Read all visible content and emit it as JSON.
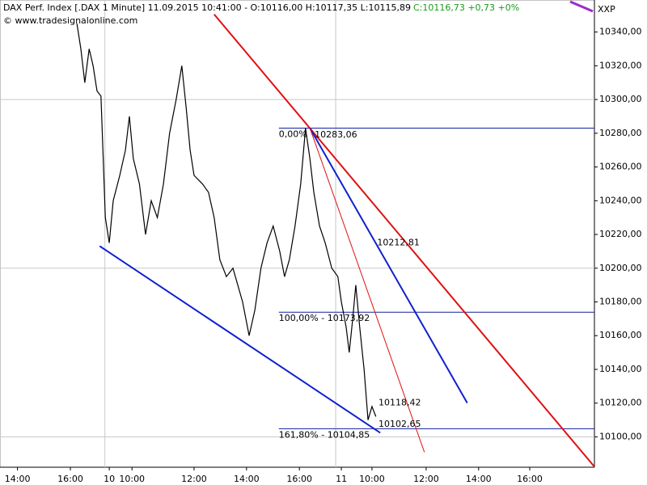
{
  "chart_data": {
    "type": "line",
    "title": "DAX Perf. Index [.DAX  1 Minute] 11.09.2015 10:41:00 - O:10116,00 H:10117,35 L:10115,89",
    "title_close": "C:10116,73 +0,73 +0%",
    "title_close_color": "#1a9a1a",
    "copyright": "© www.tradesignalonline.com",
    "corner_label": "XXP",
    "corner_color": "#9a2bd0",
    "xlim": [
      0,
      1360
    ],
    "ylim": [
      10082,
      10359
    ],
    "xticks": [
      {
        "value": 40,
        "label": "14:00"
      },
      {
        "value": 161,
        "label": "16:00"
      },
      {
        "value": 250,
        "label": "10"
      },
      {
        "value": 302,
        "label": "10:00"
      },
      {
        "value": 444,
        "label": "12:00"
      },
      {
        "value": 564,
        "label": "14:00"
      },
      {
        "value": 685,
        "label": "16:00"
      },
      {
        "value": 781,
        "label": "11"
      },
      {
        "value": 851,
        "label": "10:00"
      },
      {
        "value": 975,
        "label": "12:00"
      },
      {
        "value": 1095,
        "label": "14:00"
      },
      {
        "value": 1212,
        "label": "16:00"
      }
    ],
    "yticks": [
      {
        "value": 10100,
        "label": "10100,00"
      },
      {
        "value": 10120,
        "label": "10120,00"
      },
      {
        "value": 10140,
        "label": "10140,00"
      },
      {
        "value": 10160,
        "label": "10160,00"
      },
      {
        "value": 10180,
        "label": "10180,00"
      },
      {
        "value": 10200,
        "label": "10200,00"
      },
      {
        "value": 10220,
        "label": "10220,00"
      },
      {
        "value": 10240,
        "label": "10240,00"
      },
      {
        "value": 10260,
        "label": "10260,00"
      },
      {
        "value": 10280,
        "label": "10280,00"
      },
      {
        "value": 10300,
        "label": "10300,00"
      },
      {
        "value": 10320,
        "label": "10320,00"
      },
      {
        "value": 10340,
        "label": "10340,00"
      }
    ],
    "ygrid": [
      10100,
      10200,
      10300
    ],
    "xgrid": [
      240,
      768
    ],
    "grid_color": "#c8c8c8",
    "series": [
      {
        "name": "DAX",
        "color": "#000000",
        "x": [
          176,
          185,
          194,
          204,
          213,
          222,
          231,
          241,
          250,
          259,
          274,
          287,
          296,
          305,
          319,
          333,
          346,
          360,
          374,
          388,
          403,
          416,
          426,
          435,
          444,
          463,
          477,
          490,
          503,
          518,
          533,
          555,
          570,
          583,
          597,
          611,
          625,
          640,
          651,
          662,
          675,
          688,
          699,
          709,
          718,
          731,
          744,
          759,
          773,
          781,
          792,
          799,
          807,
          814,
          823,
          833,
          842,
          851,
          860
        ],
        "values": [
          10345,
          10330,
          10310,
          10330,
          10320,
          10305,
          10302,
          10230,
          10215,
          10240,
          10255,
          10270,
          10290,
          10265,
          10250,
          10220,
          10240,
          10230,
          10250,
          10280,
          10300,
          10320,
          10295,
          10270,
          10255,
          10250,
          10245,
          10230,
          10205,
          10195,
          10200,
          10180,
          10160,
          10175,
          10200,
          10215,
          10225,
          10210,
          10195,
          10205,
          10225,
          10250,
          10283,
          10265,
          10245,
          10225,
          10215,
          10200,
          10195,
          10180,
          10165,
          10150,
          10170,
          10190,
          10165,
          10140,
          10110,
          10118,
          10112
        ]
      }
    ],
    "trendlines": [
      {
        "color": "#e01010",
        "width": 2,
        "points": [
          [
            490,
            10350.5
          ],
          [
            1360,
            10082.3
          ]
        ]
      },
      {
        "color": "#1020d0",
        "width": 2,
        "points": [
          [
            709,
            10283.06
          ],
          [
            1069,
            10120.1
          ]
        ]
      },
      {
        "color": "#e01010",
        "width": 1,
        "points": [
          [
            709,
            10283.06
          ],
          [
            971,
            10090.9
          ]
        ]
      },
      {
        "color": "#1020d0",
        "width": 2,
        "points": [
          [
            228,
            10213.1
          ],
          [
            870,
            10102.4
          ]
        ]
      }
    ],
    "levels": [
      {
        "value": 10283.06,
        "label": "0,00%"
      },
      {
        "value": 10173.92,
        "label": "100,00% - 10173,92"
      },
      {
        "value": 10104.85,
        "label": "161,80% - 10104,85"
      }
    ],
    "levels_start": 638,
    "levels_color": "#1020a0",
    "annotations": [
      {
        "text": "10283,06",
        "x": 720,
        "y": 10279,
        "color": "#1020a0"
      },
      {
        "text": "10212,81",
        "x": 863,
        "y": 10215,
        "color": "#1020a0"
      },
      {
        "text": "10118,42",
        "x": 866,
        "y": 10120,
        "color": "#e01010"
      },
      {
        "text": "10102,65",
        "x": 866,
        "y": 10107.5,
        "color": "#1020a0"
      }
    ]
  }
}
